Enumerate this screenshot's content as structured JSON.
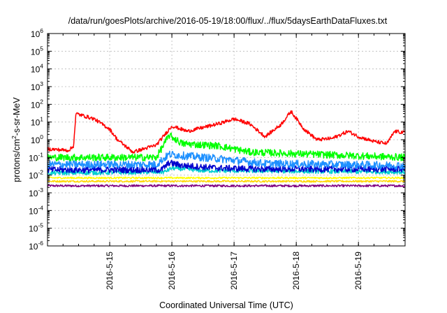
{
  "chart_data": {
    "type": "line",
    "title": "/data/run/goesPlots/archive/2016-05-19/18:00/flux/../flux/5daysEarthDataFluxes.txt",
    "xlabel": "Coordinated Universal Time (UTC)",
    "ylabel": {
      "pre": "protons/cm",
      "sup": "2",
      "post": "-s-sr-MeV"
    },
    "y_scale": "log",
    "ylim": [
      1e-06,
      1000000.0
    ],
    "xlim": [
      "2016-05-14 00:00",
      "2016-05-19 18:00"
    ],
    "grid": true,
    "x_ticks": [
      "2016-5-15",
      "2016-5-16",
      "2016-5-17",
      "2016-5-18",
      "2016-5-19"
    ],
    "y_ticks": [
      {
        "base": "10",
        "exp": "-6"
      },
      {
        "base": "10",
        "exp": "-5"
      },
      {
        "base": "10",
        "exp": "-4"
      },
      {
        "base": "10",
        "exp": "-3"
      },
      {
        "base": "10",
        "exp": "-2"
      },
      {
        "base": "10",
        "exp": "-1"
      },
      {
        "base": "10",
        "exp": "0"
      },
      {
        "base": "10",
        "exp": "1"
      },
      {
        "base": "10",
        "exp": "2"
      },
      {
        "base": "10",
        "exp": "3"
      },
      {
        "base": "10",
        "exp": "4"
      },
      {
        "base": "10",
        "exp": "5"
      },
      {
        "base": "10",
        "exp": "6"
      }
    ],
    "series": [
      {
        "color": "#800080",
        "noise": 0.06,
        "points": [
          [
            "2016-05-14 00:00",
            0.0025
          ],
          [
            "2016-05-16 00:00",
            0.0025
          ],
          [
            "2016-05-19 18:00",
            0.0025
          ]
        ]
      },
      {
        "color": "#ffd700",
        "noise": 0.05,
        "points": [
          [
            "2016-05-14 00:00",
            0.0045
          ],
          [
            "2016-05-16 00:00",
            0.0045
          ],
          [
            "2016-05-19 18:00",
            0.0045
          ]
        ]
      },
      {
        "color": "#ffff00",
        "noise": 0.05,
        "points": [
          [
            "2016-05-14 00:00",
            0.007
          ],
          [
            "2016-05-16 00:00",
            0.007
          ],
          [
            "2016-05-19 18:00",
            0.007
          ]
        ]
      },
      {
        "color": "#00ced1",
        "noise": 0.12,
        "points": [
          [
            "2016-05-14 00:00",
            0.013
          ],
          [
            "2016-05-15 21:00",
            0.015
          ],
          [
            "2016-05-16 00:00",
            0.025
          ],
          [
            "2016-05-16 12:00",
            0.018
          ],
          [
            "2016-05-19 18:00",
            0.015
          ]
        ]
      },
      {
        "color": "#0000cd",
        "noise": 0.18,
        "points": [
          [
            "2016-05-14 00:00",
            0.02
          ],
          [
            "2016-05-15 20:00",
            0.02
          ],
          [
            "2016-05-15 23:00",
            0.05
          ],
          [
            "2016-05-16 04:00",
            0.035
          ],
          [
            "2016-05-16 18:00",
            0.025
          ],
          [
            "2016-05-17 12:00",
            0.022
          ],
          [
            "2016-05-19 18:00",
            0.022
          ]
        ]
      },
      {
        "color": "#1e90ff",
        "noise": 0.22,
        "points": [
          [
            "2016-05-14 00:00",
            0.04
          ],
          [
            "2016-05-15 18:00",
            0.04
          ],
          [
            "2016-05-15 23:00",
            0.15
          ],
          [
            "2016-05-16 06:00",
            0.12
          ],
          [
            "2016-05-16 20:00",
            0.08
          ],
          [
            "2016-05-17 12:00",
            0.045
          ],
          [
            "2016-05-19 18:00",
            0.035
          ]
        ]
      },
      {
        "color": "#00ff00",
        "noise": 0.2,
        "points": [
          [
            "2016-05-14 00:00",
            0.1
          ],
          [
            "2016-05-15 18:00",
            0.1
          ],
          [
            "2016-05-15 23:00",
            1.8
          ],
          [
            "2016-05-16 04:00",
            0.6
          ],
          [
            "2016-05-16 18:00",
            0.45
          ],
          [
            "2016-05-17 06:00",
            0.2
          ],
          [
            "2016-05-19 18:00",
            0.1
          ]
        ]
      },
      {
        "color": "#ff0000",
        "noise": 0.1,
        "points": [
          [
            "2016-05-14 00:00",
            0.3
          ],
          [
            "2016-05-14 08:00",
            0.25
          ],
          [
            "2016-05-14 10:00",
            0.4
          ],
          [
            "2016-05-14 11:00",
            30
          ],
          [
            "2016-05-14 18:00",
            15
          ],
          [
            "2016-05-15 00:00",
            4
          ],
          [
            "2016-05-15 03:00",
            1
          ],
          [
            "2016-05-15 09:00",
            0.2
          ],
          [
            "2016-05-15 18:00",
            0.5
          ],
          [
            "2016-05-16 00:00",
            6
          ],
          [
            "2016-05-16 06:00",
            3
          ],
          [
            "2016-05-16 18:00",
            8
          ],
          [
            "2016-05-17 00:00",
            15
          ],
          [
            "2016-05-17 06:00",
            8
          ],
          [
            "2016-05-17 12:00",
            1.5
          ],
          [
            "2016-05-17 18:00",
            7
          ],
          [
            "2016-05-17 22:00",
            40
          ],
          [
            "2016-05-18 03:00",
            4
          ],
          [
            "2016-05-18 08:00",
            1
          ],
          [
            "2016-05-18 14:00",
            1.2
          ],
          [
            "2016-05-18 20:00",
            3
          ],
          [
            "2016-05-19 00:00",
            1.5
          ],
          [
            "2016-05-19 06:00",
            0.8
          ],
          [
            "2016-05-19 11:00",
            0.6
          ],
          [
            "2016-05-19 14:00",
            3
          ],
          [
            "2016-05-19 18:00",
            2.5
          ]
        ]
      }
    ]
  }
}
